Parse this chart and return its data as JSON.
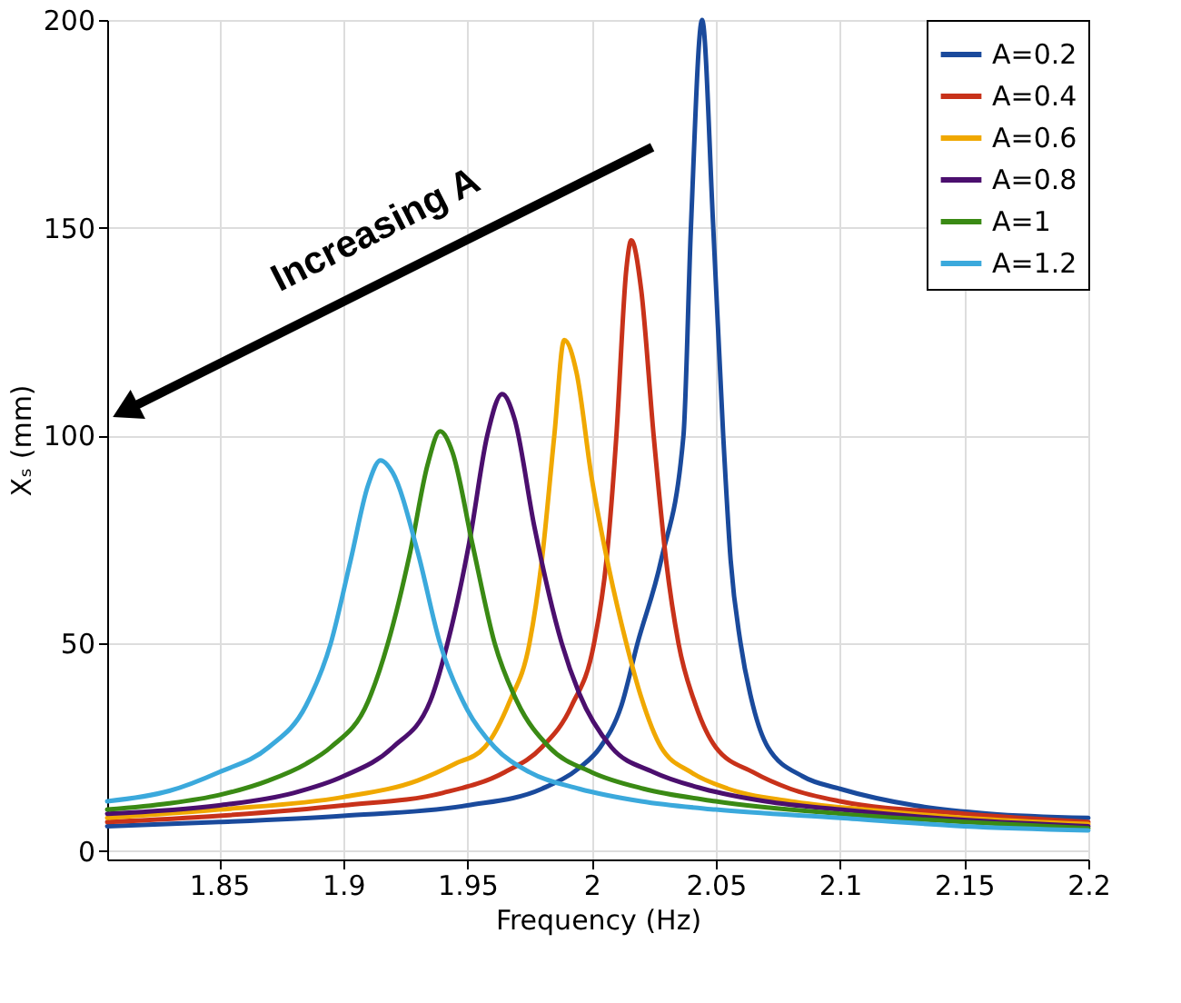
{
  "chart_data": {
    "type": "line",
    "xlabel": "Frequency (Hz)",
    "ylabel": "Xₛ (mm)",
    "xlim": [
      1.805,
      2.2
    ],
    "xticks": [
      1.85,
      1.9,
      1.95,
      2,
      2.05,
      2.1,
      2.15,
      2.2
    ],
    "ylim": [
      -2,
      200
    ],
    "yticks": [
      0,
      50,
      100,
      150,
      200
    ],
    "grid": true,
    "legend": "top right",
    "marker": "none",
    "line_style": "solid",
    "annotations": [
      "Increasing A"
    ],
    "series": [
      {
        "name": "A=0.2",
        "color": "#1a4a9c",
        "x": [
          1.805,
          1.85,
          1.9,
          1.95,
          1.98,
          1.995,
          2.0035,
          2.012,
          2.0185,
          2.028,
          2.037,
          2.04,
          2.0445,
          2.049,
          2.053,
          2.056,
          2.06,
          2.065,
          2.071,
          2.085,
          2.1,
          2.13,
          2.16,
          2.2
        ],
        "values": [
          6,
          7,
          8.5,
          11,
          15,
          20,
          25,
          35,
          50,
          70,
          100,
          150,
          200,
          150,
          100,
          70,
          50,
          35,
          25,
          18,
          15,
          11,
          9,
          8
        ]
      },
      {
        "name": "A=0.4",
        "color": "#c8321a",
        "x": [
          1.805,
          1.85,
          1.9,
          1.94,
          1.965,
          1.98,
          1.992,
          2.001,
          2.006,
          2.01,
          2.014,
          2.016,
          2.02,
          2.025,
          2.03,
          2.035,
          2.042,
          2.05,
          2.065,
          2.08,
          2.1,
          2.15,
          2.2
        ],
        "values": [
          7,
          8.5,
          11,
          14,
          19,
          25,
          35,
          50,
          70,
          100,
          140,
          147,
          135,
          100,
          70,
          50,
          35,
          25,
          19,
          15,
          12,
          9,
          7
        ]
      },
      {
        "name": "A=0.6",
        "color": "#f0a800",
        "x": [
          1.805,
          1.85,
          1.9,
          1.93,
          1.945,
          1.957,
          1.967,
          1.975,
          1.98,
          1.985,
          1.989,
          1.994,
          2.0,
          2.007,
          2.014,
          2.02,
          2.028,
          2.04,
          2.055,
          2.08,
          2.11,
          2.15,
          2.2
        ],
        "values": [
          8,
          10,
          13,
          17,
          21,
          25,
          36,
          50,
          70,
          100,
          123,
          115,
          90,
          68,
          50,
          37,
          25,
          19,
          15,
          12,
          10,
          8,
          6.5
        ]
      },
      {
        "name": "A=0.8",
        "color": "#4b0f6e",
        "x": [
          1.805,
          1.85,
          1.88,
          1.9,
          1.92,
          1.935,
          1.942,
          1.951,
          1.958,
          1.964,
          1.969,
          1.977,
          1.988,
          1.995,
          2.008,
          2.025,
          2.045,
          2.07,
          2.1,
          2.15,
          2.2
        ],
        "values": [
          9,
          11,
          14,
          18,
          25,
          36,
          50,
          75,
          100,
          110,
          104,
          78,
          50,
          38,
          25,
          19,
          15,
          12,
          10,
          7.5,
          6
        ]
      },
      {
        "name": "A=1",
        "color": "#3a8a14",
        "x": [
          1.805,
          1.83,
          1.85,
          1.87,
          1.885,
          1.895,
          1.91,
          1.918,
          1.927,
          1.934,
          1.939,
          1.944,
          1.952,
          1.961,
          1.97,
          1.983,
          2.0,
          2.021,
          2.05,
          2.1,
          2.15,
          2.2
        ],
        "values": [
          10,
          11.5,
          13.5,
          17,
          21,
          25,
          36,
          50,
          72,
          93,
          101,
          96,
          74,
          50,
          36,
          25,
          19,
          15,
          12,
          9,
          7,
          5.5
        ]
      },
      {
        "name": "A=1.2",
        "color": "#3ba9dc",
        "x": [
          1.805,
          1.83,
          1.85,
          1.87,
          1.885,
          1.895,
          1.903,
          1.91,
          1.915,
          1.92,
          1.93,
          1.939,
          1.95,
          1.961,
          1.975,
          1.995,
          2.02,
          2.05,
          2.1,
          2.15,
          2.2
        ],
        "values": [
          12,
          14.5,
          19,
          25,
          35,
          50,
          70,
          88,
          94,
          91,
          72,
          50,
          34,
          25,
          19,
          15,
          12,
          10,
          8,
          6,
          5
        ]
      }
    ]
  }
}
